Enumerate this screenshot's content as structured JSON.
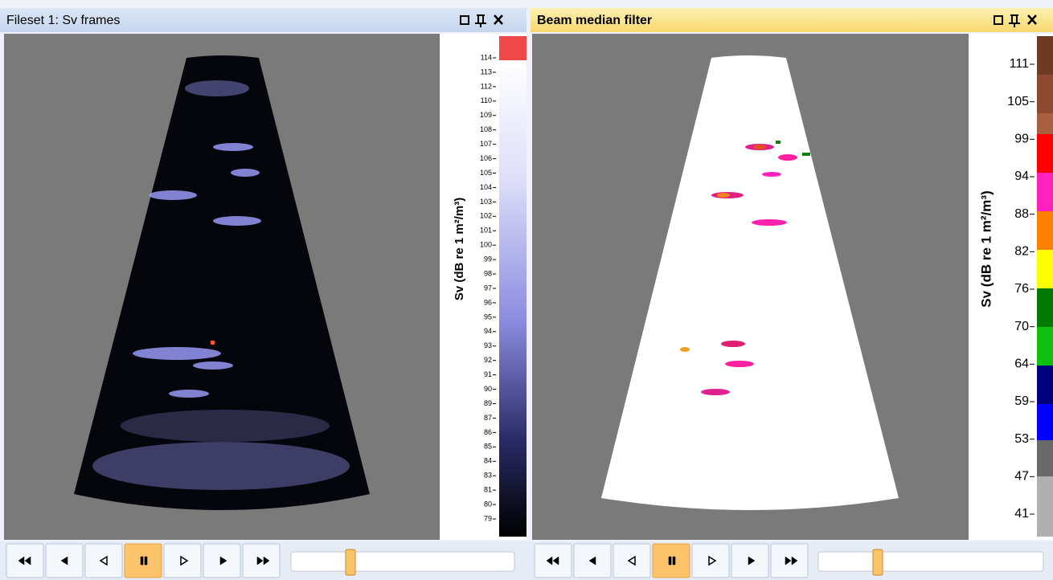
{
  "panels": [
    {
      "title": "Fileset 1: Sv frames",
      "axis_label": "Sv (dB re 1 m²/m³)",
      "ticks": [
        "114",
        "113",
        "112",
        "110",
        "109",
        "108",
        "107",
        "106",
        "105",
        "104",
        "103",
        "102",
        "101",
        "100",
        "99",
        "98",
        "97",
        "96",
        "95",
        "94",
        "93",
        "92",
        "91",
        "90",
        "89",
        "87",
        "86",
        "85",
        "84",
        "83",
        "81",
        "80",
        "79"
      ]
    },
    {
      "title": "Beam median filter",
      "axis_label": "Sv (dB re 1 m²/m³)",
      "ticks": [
        "111",
        "105",
        "99",
        "94",
        "88",
        "82",
        "76",
        "70",
        "64",
        "59",
        "53",
        "47",
        "41"
      ]
    }
  ]
}
